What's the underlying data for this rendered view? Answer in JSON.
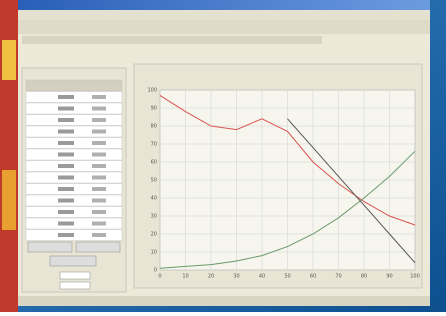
{
  "chart_data": {
    "type": "line",
    "x": [
      0,
      10,
      20,
      30,
      40,
      50,
      60,
      70,
      80,
      90,
      100
    ],
    "series": [
      {
        "color": "#d9534f",
        "values": [
          97,
          88,
          80,
          78,
          84,
          77,
          60,
          48,
          38,
          30,
          25
        ]
      },
      {
        "color": "#6a9a6a",
        "values": [
          1,
          2,
          3,
          5,
          8,
          13,
          20,
          29,
          40,
          52,
          66
        ]
      },
      {
        "color": "#555555",
        "values": [
          null,
          null,
          null,
          null,
          null,
          84,
          68,
          52,
          36,
          20,
          4
        ]
      }
    ],
    "xlim": [
      0,
      100
    ],
    "ylim": [
      0,
      100
    ],
    "xticks": [
      0,
      10,
      20,
      30,
      40,
      50,
      60,
      70,
      80,
      90,
      100
    ],
    "yticks": [
      0,
      10,
      20,
      30,
      40,
      50,
      60,
      70,
      80,
      90,
      100
    ],
    "grid": true
  }
}
